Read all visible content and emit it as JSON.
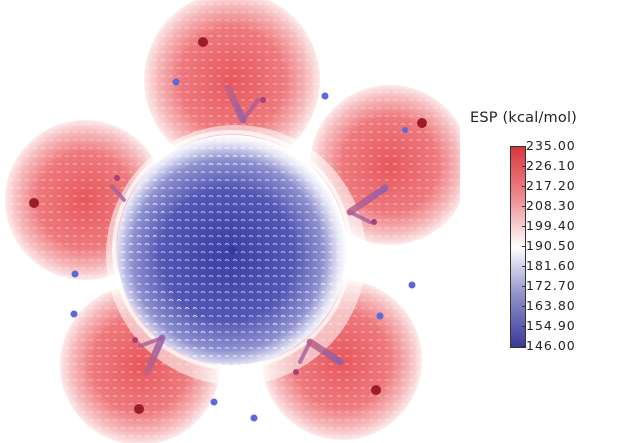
{
  "legend": {
    "title": "ESP (kcal/mol)",
    "ticks": [
      "235.00",
      "226.10",
      "217.20",
      "208.30",
      "199.40",
      "190.50",
      "181.60",
      "172.70",
      "163.80",
      "154.90",
      "146.00"
    ],
    "colors": {
      "high": "#d9363c",
      "mid": "#ffffff",
      "low": "#3a3a9a"
    }
  }
}
